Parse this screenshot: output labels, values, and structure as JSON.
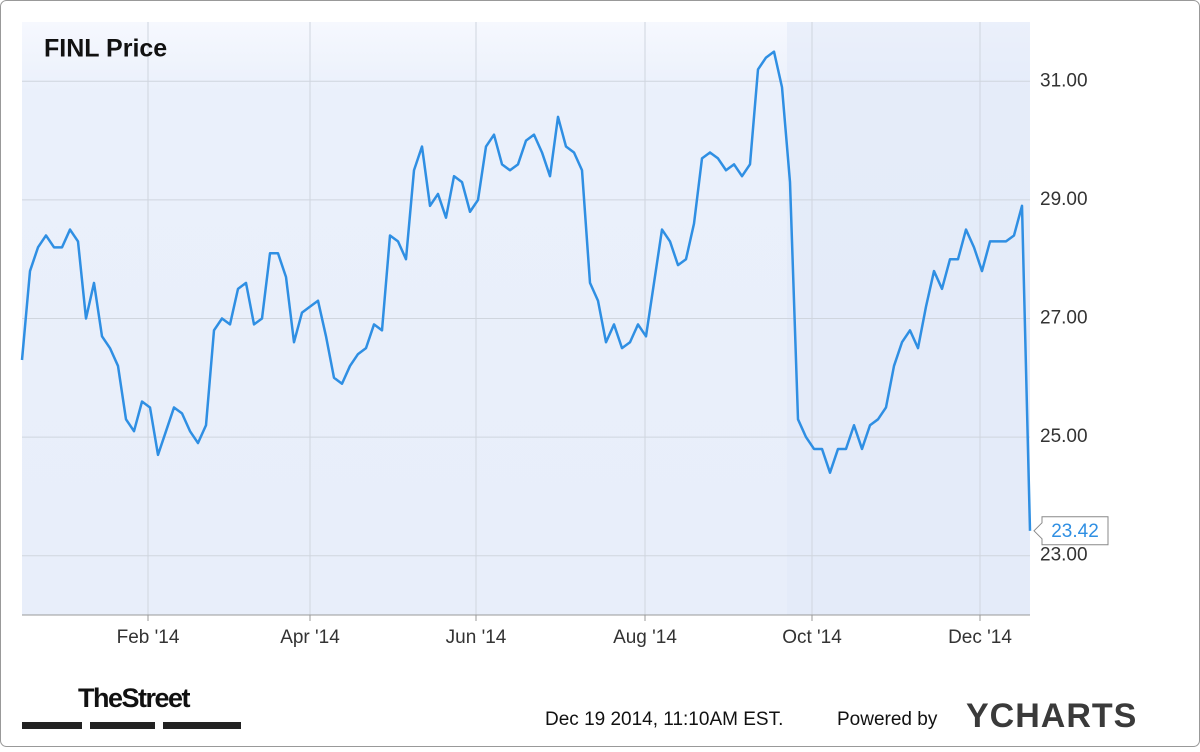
{
  "chart_data": {
    "type": "line",
    "title": "FINL Price",
    "color": "#2f8fe3",
    "values": [
      26.3,
      27.8,
      28.2,
      28.4,
      28.2,
      28.2,
      28.5,
      28.3,
      27.0,
      27.6,
      26.7,
      26.5,
      26.2,
      25.3,
      25.1,
      25.6,
      25.5,
      24.7,
      25.1,
      25.5,
      25.4,
      25.1,
      24.9,
      25.2,
      26.8,
      27.0,
      26.9,
      27.5,
      27.6,
      26.9,
      27.0,
      28.1,
      28.1,
      27.7,
      26.6,
      27.1,
      27.2,
      27.3,
      26.7,
      26.0,
      25.9,
      26.2,
      26.4,
      26.5,
      26.9,
      26.8,
      28.4,
      28.3,
      28.0,
      29.5,
      29.9,
      28.9,
      29.1,
      28.7,
      29.4,
      29.3,
      28.8,
      29.0,
      29.9,
      30.1,
      29.6,
      29.5,
      29.6,
      30.0,
      30.1,
      29.8,
      29.4,
      30.4,
      29.9,
      29.8,
      29.5,
      27.6,
      27.3,
      26.6,
      26.9,
      26.5,
      26.6,
      26.9,
      26.7,
      27.6,
      28.5,
      28.3,
      27.9,
      28.0,
      28.6,
      29.7,
      29.8,
      29.7,
      29.5,
      29.6,
      29.4,
      29.6,
      31.2,
      31.4,
      31.5,
      30.9,
      29.3,
      25.3,
      25.0,
      24.8,
      24.8,
      24.4,
      24.8,
      24.8,
      25.2,
      24.8,
      25.2,
      25.3,
      25.5,
      26.2,
      26.6,
      26.8,
      26.5,
      27.2,
      27.8,
      27.5,
      28.0,
      28.0,
      28.5,
      28.2,
      27.8,
      28.3,
      28.3,
      28.3,
      28.4,
      28.9,
      23.42
    ],
    "xlim": [
      0,
      126
    ],
    "xticks": [
      {
        "value": 15.75,
        "label": "Feb '14"
      },
      {
        "value": 36,
        "label": "Apr '14"
      },
      {
        "value": 56.75,
        "label": "Jun '14"
      },
      {
        "value": 77.875,
        "label": "Aug '14"
      },
      {
        "value": 98.75,
        "label": "Oct '14"
      },
      {
        "value": 119.75,
        "label": "Dec '14"
      }
    ],
    "ylim": [
      22,
      32
    ],
    "yticks": [
      {
        "value": 23,
        "label": "23.00"
      },
      {
        "value": 25,
        "label": "25.00"
      },
      {
        "value": 27,
        "label": "27.00"
      },
      {
        "value": 29,
        "label": "29.00"
      },
      {
        "value": 31,
        "label": "31.00"
      }
    ],
    "grid": true
  },
  "footer": {
    "timestamp": "Dec 19 2014, 11:10AM EST.",
    "powered_by": "Powered by",
    "brand": "YCHARTS",
    "publisher": "TheStreet"
  }
}
